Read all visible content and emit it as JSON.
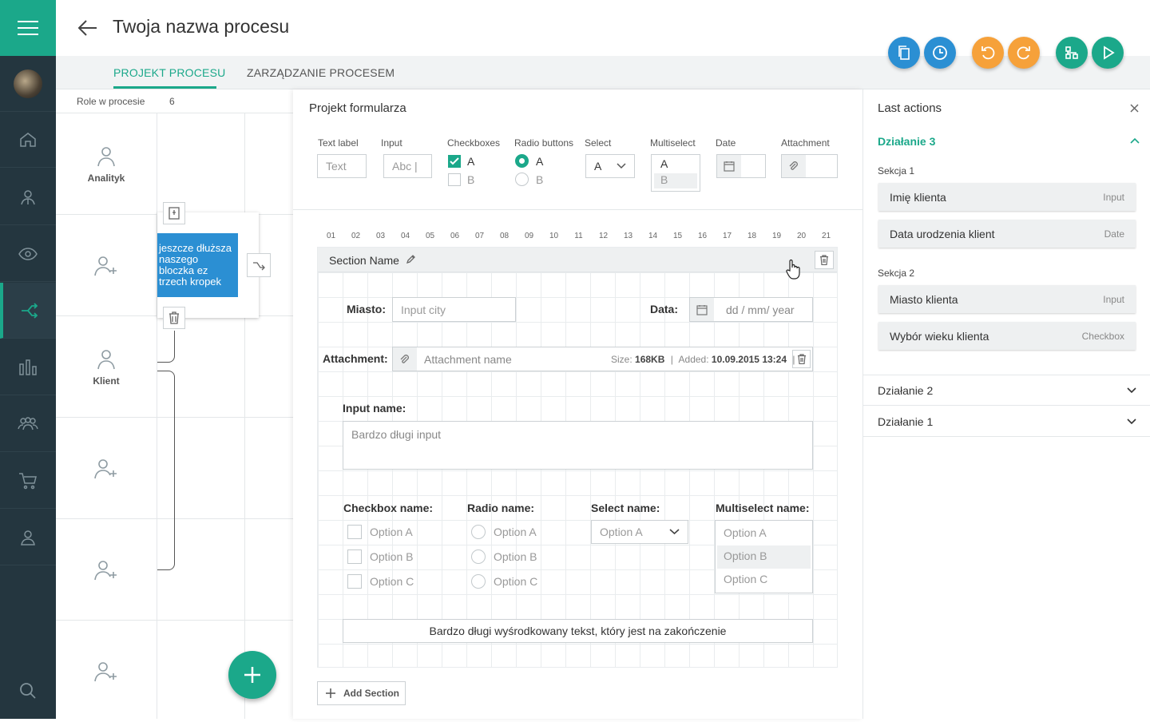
{
  "header": {
    "title": "Twoja nazwa procesu"
  },
  "tabs": [
    {
      "label": "PROJEKT PROCESU"
    },
    {
      "label": "ZARZĄDZANIE PROCESEM"
    }
  ],
  "sidebar": {
    "items": [
      "menu-icon",
      "avatar",
      "home-icon",
      "user-icon",
      "eye-icon",
      "process-icon",
      "chart-icon",
      "group-icon",
      "cart-icon",
      "person-icon",
      "search-icon"
    ]
  },
  "roles": {
    "header_label": "Role w procesie",
    "count": "6",
    "lanes": [
      "Analityk",
      "",
      "Klient",
      "",
      "",
      ""
    ]
  },
  "process_block": {
    "text": "jeszcze dłuższa naszego bloczka ez trzech kropek"
  },
  "form": {
    "title": "Projekt formularza",
    "controls": {
      "text_label": "Text label",
      "text_value": "Text",
      "input_label": "Input",
      "input_value": "Abc |",
      "checkboxes_label": "Checkboxes",
      "cb_a": "A",
      "cb_b": "B",
      "radio_label": "Radio buttons",
      "rb_a": "A",
      "rb_b": "B",
      "select_label": "Select",
      "select_value": "A",
      "multiselect_label": "Multiselect",
      "ms_a": "A",
      "ms_b": "B",
      "date_label": "Date",
      "attachment_label": "Attachment"
    },
    "columns": [
      "01",
      "02",
      "03",
      "04",
      "05",
      "06",
      "07",
      "08",
      "09",
      "10",
      "11",
      "12",
      "13",
      "14",
      "15",
      "16",
      "17",
      "18",
      "19",
      "20",
      "21"
    ],
    "section_name": "Section Name",
    "miasto_label": "Miasto:",
    "miasto_placeholder": "Input city",
    "data_label": "Data:",
    "data_placeholder": "dd / mm/ year",
    "attachment_label": "Attachment:",
    "attachment_name": "Attachment name",
    "size_label": "Size:",
    "size_value": "168KB",
    "added_label": "Added:",
    "added_value": "10.09.2015 13:24",
    "input_name_label": "Input name:",
    "long_input": "Bardzo długi input",
    "checkbox_name": "Checkbox name:",
    "radio_name": "Radio name:",
    "select_name": "Select name:",
    "multiselect_name": "Multiselect name:",
    "options": [
      "Option A",
      "Option B",
      "Option C"
    ],
    "select_option": "Option A",
    "centered_text": "Bardzo długi wyśrodkowany tekst, który jest na zakończenie",
    "add_section": "Add Section"
  },
  "last_actions": {
    "title": "Last actions",
    "active": {
      "name": "Działanie 3",
      "sections": [
        {
          "name": "Sekcja 1",
          "items": [
            {
              "name": "Imię klienta",
              "type": "Input"
            },
            {
              "name": "Data urodzenia klient",
              "type": "Date"
            }
          ]
        },
        {
          "name": "Sekcja 2",
          "items": [
            {
              "name": "Miasto klienta",
              "type": "Input"
            },
            {
              "name": "Wybór wieku klienta",
              "type": "Checkbox"
            }
          ]
        }
      ]
    },
    "collapsed": [
      "Działanie 2",
      "Działanie 1"
    ]
  },
  "colors": {
    "accent": "#1ba88a",
    "blue": "#2b8fd3",
    "orange": "#f6a13a",
    "sidebar": "#24363f"
  }
}
